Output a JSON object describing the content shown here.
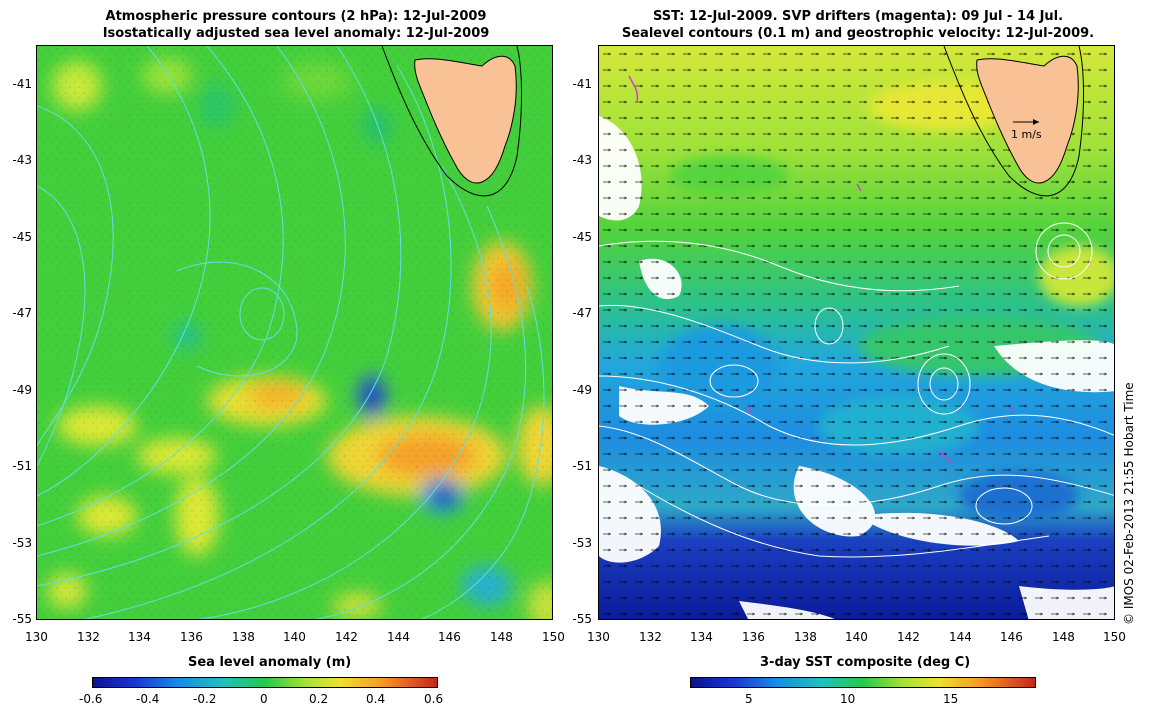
{
  "left": {
    "title_line1": "Atmospheric pressure contours (2 hPa): 12-Jul-2009",
    "title_line2": "Isostatically adjusted sea level anomaly: 12-Jul-2009",
    "colorbar_label": "Sea level anomaly (m)",
    "colorbar_ticks": [
      "-0.6",
      "-0.4",
      "-0.2",
      "0",
      "0.2",
      "0.4",
      "0.6"
    ]
  },
  "right": {
    "title_line1": "SST: 12-Jul-2009. SVP drifters (magenta): 09 Jul - 14 Jul.",
    "title_line2": "Sealevel contours (0.1 m) and geostrophic velocity: 12-Jul-2009.",
    "colorbar_label": "3-day SST composite (deg C)",
    "colorbar_ticks": [
      "5",
      "10",
      "15"
    ],
    "velocity_scale_label": "1 m/s"
  },
  "axes": {
    "x_ticks": [
      "130",
      "132",
      "134",
      "136",
      "138",
      "140",
      "142",
      "144",
      "146",
      "148",
      "150"
    ],
    "y_ticks": [
      "-41",
      "-43",
      "-45",
      "-47",
      "-49",
      "-51",
      "-53",
      "-55"
    ]
  },
  "credit": "© IMOS 02-Feb-2013 21:55 Hobart Time",
  "colors": {
    "land": "#f9c196",
    "contour_pressure": "#5fe0e0",
    "contour_sealevel": "#ffffff",
    "drifters": "#d040d0"
  }
}
